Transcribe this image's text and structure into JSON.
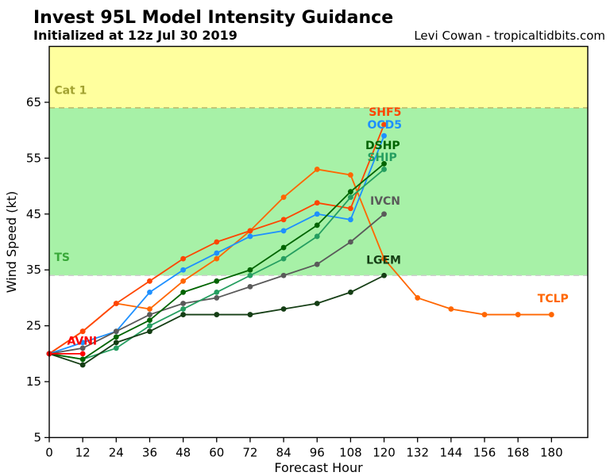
{
  "header": {
    "title": "Invest 95L Model Intensity Guidance",
    "subtitle": "Initialized at 12z Jul 30 2019",
    "credit": "Levi Cowan - tropicaltidbits.com"
  },
  "chart_data": {
    "type": "line",
    "title": "Invest 95L Model Intensity Guidance",
    "subtitle": "Initialized at 12z Jul 30 2019",
    "xlabel": "Forecast Hour",
    "ylabel": "Wind Speed (kt)",
    "xlim": [
      0,
      193
    ],
    "ylim": [
      5,
      75
    ],
    "xticks": [
      0,
      12,
      24,
      36,
      48,
      60,
      72,
      84,
      96,
      108,
      120,
      132,
      144,
      156,
      168,
      180
    ],
    "yticks": [
      5,
      15,
      25,
      35,
      45,
      55,
      65
    ],
    "grid": false,
    "legend": "inline-labels",
    "bands": [
      {
        "name": "tropical-storm-band",
        "from": 34,
        "to": 64,
        "color": "#a7f1a7"
      },
      {
        "name": "hurricane-cat1-band",
        "from": 64,
        "to": 75,
        "color": "#ffff9e"
      }
    ],
    "thresholds": [
      {
        "value": 34,
        "style": "dashed",
        "color": "#cfcfcf"
      },
      {
        "value": 64,
        "style": "dashed",
        "color": "#bdbd6d"
      }
    ],
    "annotations": [
      {
        "text": "Cat 1",
        "at": [
          1.8,
          66.5
        ],
        "color": "#a2a232"
      },
      {
        "text": "TS",
        "at": [
          1.8,
          36.6
        ],
        "color": "#38a838"
      }
    ],
    "series": [
      {
        "name": "TCLP",
        "color": "#ff6600",
        "points": [
          [
            0,
            20
          ],
          [
            12,
            24
          ],
          [
            24,
            29
          ],
          [
            36,
            28
          ],
          [
            48,
            33
          ],
          [
            60,
            37
          ],
          [
            72,
            42
          ],
          [
            84,
            48
          ],
          [
            96,
            53
          ],
          [
            108,
            52
          ],
          [
            120,
            37
          ],
          [
            132,
            30
          ],
          [
            144,
            28
          ],
          [
            156,
            27
          ],
          [
            168,
            27
          ],
          [
            180,
            27
          ]
        ],
        "label_at": [
          175,
          29.2
        ]
      },
      {
        "name": "SHF5",
        "color": "#ff4500",
        "points": [
          [
            0,
            20
          ],
          [
            12,
            24
          ],
          [
            24,
            29
          ],
          [
            36,
            33
          ],
          [
            48,
            37
          ],
          [
            60,
            40
          ],
          [
            72,
            42
          ],
          [
            84,
            44
          ],
          [
            96,
            47
          ],
          [
            108,
            46
          ],
          [
            120,
            61
          ]
        ],
        "label_at": [
          114.5,
          62.6
        ]
      },
      {
        "name": "OCD5",
        "color": "#1e90ff",
        "points": [
          [
            0,
            20
          ],
          [
            12,
            22
          ],
          [
            24,
            24
          ],
          [
            36,
            31
          ],
          [
            48,
            35
          ],
          [
            60,
            38
          ],
          [
            72,
            41
          ],
          [
            84,
            42
          ],
          [
            96,
            45
          ],
          [
            108,
            44
          ],
          [
            120,
            59
          ]
        ],
        "label_at": [
          114.0,
          60.3
        ]
      },
      {
        "name": "IVCN",
        "color": "#5a5a5a",
        "points": [
          [
            0,
            20
          ],
          [
            12,
            21
          ],
          [
            24,
            24
          ],
          [
            36,
            27
          ],
          [
            48,
            29
          ],
          [
            60,
            30
          ],
          [
            72,
            32
          ],
          [
            84,
            34
          ],
          [
            96,
            36
          ],
          [
            108,
            40
          ],
          [
            120,
            45
          ]
        ],
        "label_at": [
          115.0,
          46.7
        ]
      },
      {
        "name": "SHIP",
        "color": "#259e60",
        "points": [
          [
            0,
            20
          ],
          [
            12,
            19
          ],
          [
            24,
            21
          ],
          [
            36,
            25
          ],
          [
            48,
            28
          ],
          [
            60,
            31
          ],
          [
            72,
            34
          ],
          [
            84,
            37
          ],
          [
            96,
            41
          ],
          [
            108,
            48
          ],
          [
            120,
            53
          ]
        ],
        "label_at": [
          114.0,
          54.5
        ]
      },
      {
        "name": "DSHP",
        "color": "#006400",
        "points": [
          [
            0,
            20
          ],
          [
            12,
            19
          ],
          [
            24,
            23
          ],
          [
            36,
            26
          ],
          [
            48,
            31
          ],
          [
            60,
            33
          ],
          [
            72,
            35
          ],
          [
            84,
            39
          ],
          [
            96,
            43
          ],
          [
            108,
            49
          ],
          [
            120,
            54
          ]
        ],
        "label_at": [
          113.3,
          56.6
        ]
      },
      {
        "name": "LGEM",
        "color": "#153e15",
        "points": [
          [
            0,
            20
          ],
          [
            12,
            18
          ],
          [
            24,
            22
          ],
          [
            36,
            24
          ],
          [
            48,
            27
          ],
          [
            60,
            27
          ],
          [
            72,
            27
          ],
          [
            84,
            28
          ],
          [
            96,
            29
          ],
          [
            108,
            31
          ],
          [
            120,
            34
          ]
        ],
        "label_at": [
          113.6,
          36.1
        ]
      },
      {
        "name": "AVNI",
        "color": "#ff0000",
        "points": [
          [
            0,
            20
          ],
          [
            12,
            20
          ]
        ],
        "label_at": [
          6.4,
          21.6
        ]
      }
    ]
  }
}
